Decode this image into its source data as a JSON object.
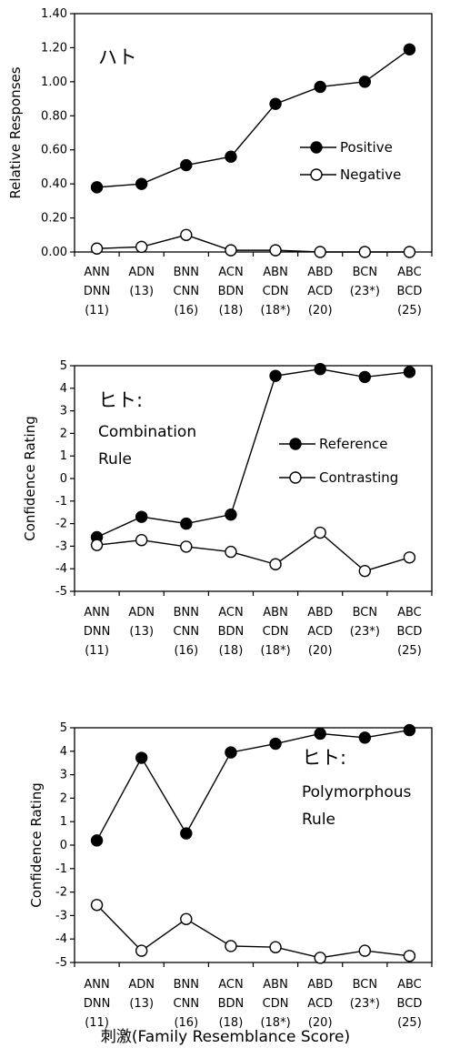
{
  "xlabel": "刺激(Family Resemblance Score)",
  "chart_data": [
    {
      "type": "line",
      "title": "ハト",
      "ylabel": "Relative Responses",
      "ylim": [
        0,
        1.4
      ],
      "yticks": [
        "0.00",
        "0.20",
        "0.40",
        "0.60",
        "0.80",
        "1.00",
        "1.20",
        "1.40"
      ],
      "categories": [
        [
          "ANN",
          "DNN",
          "(11)"
        ],
        [
          "ADN",
          "(13)",
          ""
        ],
        [
          "BNN",
          "CNN",
          "(16)"
        ],
        [
          "ACN",
          "BDN",
          "(18)"
        ],
        [
          "ABN",
          "CDN",
          "(18*)"
        ],
        [
          "ABD",
          "ACD",
          "(20)"
        ],
        [
          "BCN",
          "(23*)",
          ""
        ],
        [
          "ABC",
          "BCD",
          "(25)"
        ]
      ],
      "series": [
        {
          "name": "Positive",
          "marker": "filled",
          "values": [
            0.38,
            0.4,
            0.51,
            0.56,
            0.87,
            0.97,
            1.0,
            1.19
          ]
        },
        {
          "name": "Negative",
          "marker": "open",
          "values": [
            0.02,
            0.03,
            0.1,
            0.01,
            0.01,
            0.0,
            0.0,
            0.0
          ]
        }
      ],
      "legend": "right"
    },
    {
      "type": "line",
      "title": "ヒト:",
      "subtitle": [
        "Combination",
        "Rule"
      ],
      "ylabel": "Confidence Rating",
      "ylim": [
        -5,
        5
      ],
      "yticks": [
        "-5",
        "-4",
        "-3",
        "-2",
        "-1",
        "0",
        "1",
        "2",
        "3",
        "4",
        "5"
      ],
      "categories": [
        [
          "ANN",
          "DNN",
          "(11)"
        ],
        [
          "ADN",
          "(13)",
          ""
        ],
        [
          "BNN",
          "CNN",
          "(16)"
        ],
        [
          "ACN",
          "BDN",
          "(18)"
        ],
        [
          "ABN",
          "CDN",
          "(18*)"
        ],
        [
          "ABD",
          "ACD",
          "(20)"
        ],
        [
          "BCN",
          "(23*)",
          ""
        ],
        [
          "ABC",
          "BCD",
          "(25)"
        ]
      ],
      "series": [
        {
          "name": "Reference",
          "marker": "filled",
          "values": [
            -2.6,
            -1.7,
            -2.0,
            -1.6,
            4.55,
            4.85,
            4.5,
            4.72
          ]
        },
        {
          "name": "Contrasting",
          "marker": "open",
          "values": [
            -2.95,
            -2.73,
            -3.02,
            -3.25,
            -3.8,
            -2.4,
            -4.1,
            -3.5
          ]
        }
      ],
      "legend": "right"
    },
    {
      "type": "line",
      "title": "ヒト:",
      "subtitle": [
        "Polymorphous",
        "Rule"
      ],
      "ylabel": "Confidence Rating",
      "ylim": [
        -5,
        5
      ],
      "yticks": [
        "-5",
        "-4",
        "-3",
        "-2",
        "-1",
        "0",
        "1",
        "2",
        "3",
        "4",
        "5"
      ],
      "categories": [
        [
          "ANN",
          "DNN",
          "(11)"
        ],
        [
          "ADN",
          "(13)",
          ""
        ],
        [
          "BNN",
          "CNN",
          "(16)"
        ],
        [
          "ACN",
          "BDN",
          "(18)"
        ],
        [
          "ABN",
          "CDN",
          "(18*)"
        ],
        [
          "ABD",
          "ACD",
          "(20)"
        ],
        [
          "BCN",
          "(23*)",
          ""
        ],
        [
          "ABC",
          "BCD",
          "(25)"
        ]
      ],
      "series": [
        {
          "name": "",
          "marker": "filled",
          "values": [
            0.2,
            3.72,
            0.5,
            3.95,
            4.32,
            4.75,
            4.58,
            4.9
          ]
        },
        {
          "name": "",
          "marker": "open",
          "values": [
            -2.55,
            -4.5,
            -3.15,
            -4.3,
            -4.35,
            -4.8,
            -4.5,
            -4.72
          ]
        }
      ],
      "legend": "none"
    }
  ]
}
